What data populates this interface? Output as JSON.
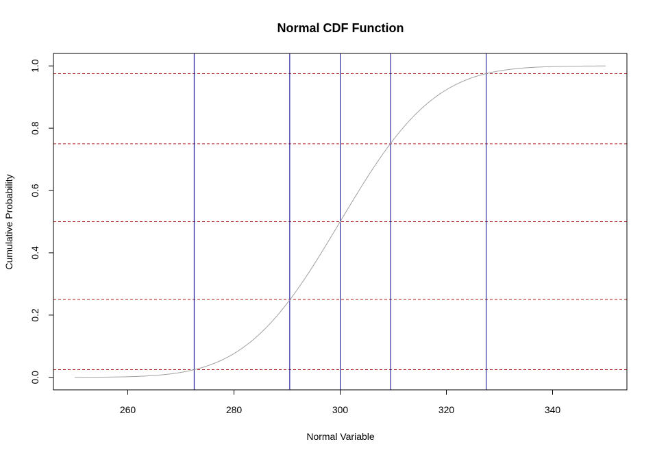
{
  "chart_data": {
    "type": "line",
    "title": "Normal CDF Function",
    "xlabel": "Normal Variable",
    "ylabel": "Cumulative Probability",
    "xlim": [
      246,
      354
    ],
    "ylim": [
      -0.04,
      1.04
    ],
    "x_ticks": [
      260,
      280,
      300,
      320,
      340
    ],
    "y_ticks": [
      0.0,
      0.2,
      0.4,
      0.6,
      0.8,
      1.0
    ],
    "x_tick_labels": [
      "260",
      "280",
      "300",
      "320",
      "340"
    ],
    "y_tick_labels": [
      "0.0",
      "0.2",
      "0.4",
      "0.6",
      "0.8",
      "1.0"
    ],
    "grid": false,
    "curve": {
      "distribution": "normal",
      "mean": 300,
      "sd": 14,
      "x_range": [
        250,
        350
      ],
      "color": "#a0a0a0"
    },
    "vertical_lines": {
      "values": [
        272.5,
        290.5,
        300,
        309.5,
        327.5
      ],
      "color": "#00008b",
      "style": "solid"
    },
    "horizontal_lines": {
      "values": [
        0.025,
        0.25,
        0.5,
        0.75,
        0.975
      ],
      "color": "#b22222",
      "style": "dashed"
    }
  }
}
